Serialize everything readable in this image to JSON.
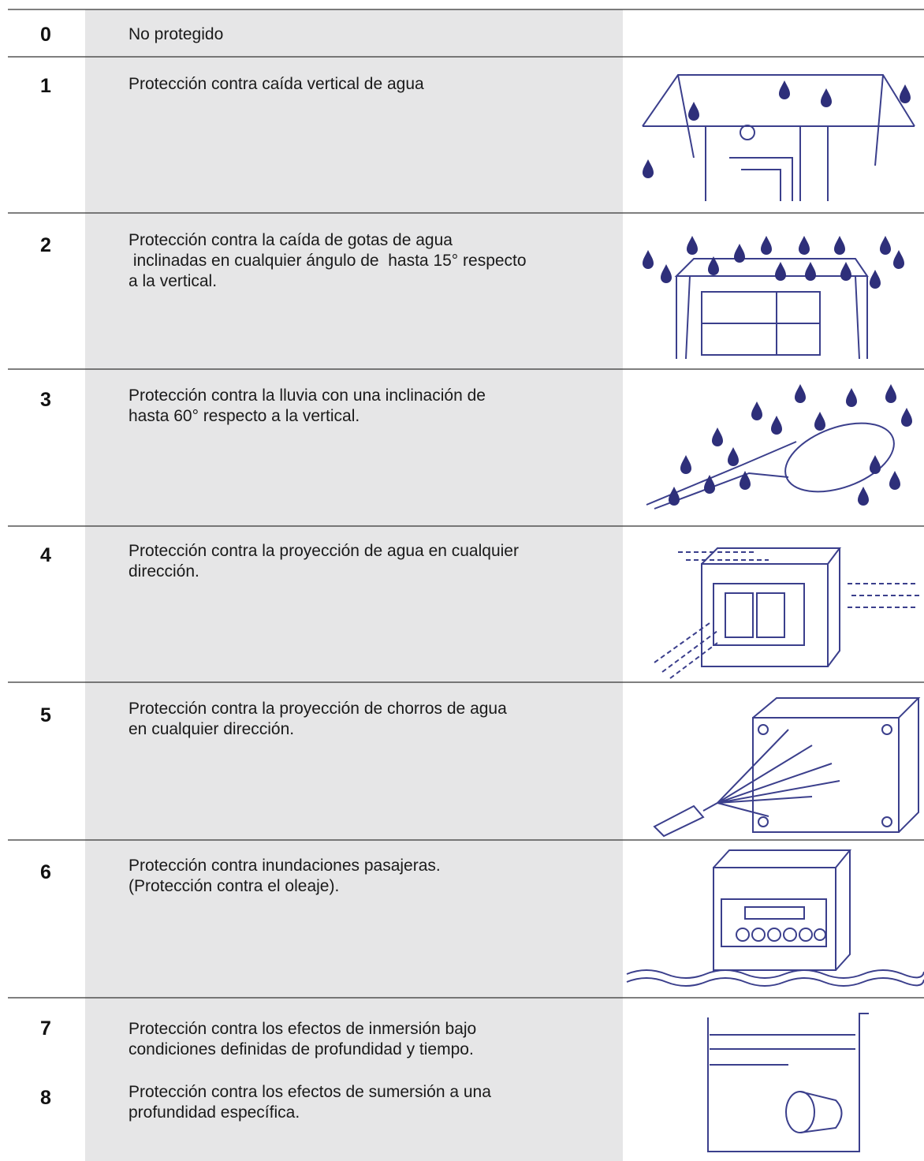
{
  "rows": [
    {
      "code": "0",
      "lines": [
        "No protegido"
      ]
    },
    {
      "code": "1",
      "lines": [
        "Protección contra caída vertical de agua"
      ]
    },
    {
      "code": "2",
      "lines": [
        "Protección contra la caída de gotas de agua",
        " inclinadas en cualquier ángulo de  hasta 15° respecto",
        "a la vertical."
      ]
    },
    {
      "code": "3",
      "lines": [
        "Protección contra la lluvia con una inclinación de",
        "hasta 60° respecto a la vertical."
      ]
    },
    {
      "code": "4",
      "lines": [
        "Protección contra la proyección de agua en cualquier",
        "dirección."
      ]
    },
    {
      "code": "5",
      "lines": [
        "Protección contra la proyección de chorros de agua",
        "en cualquier dirección."
      ]
    },
    {
      "code": "6",
      "lines": [
        "Protección contra inundaciones pasajeras.",
        "(Protección contra el oleaje)."
      ]
    },
    {
      "code": "7",
      "lines": [
        "Protección contra los efectos de inmersión bajo",
        "condiciones definidas de profundidad y tiempo."
      ]
    },
    {
      "code": "8",
      "lines": [
        "Protección contra los efectos de sumersión a una",
        "profundidad específica."
      ]
    }
  ]
}
